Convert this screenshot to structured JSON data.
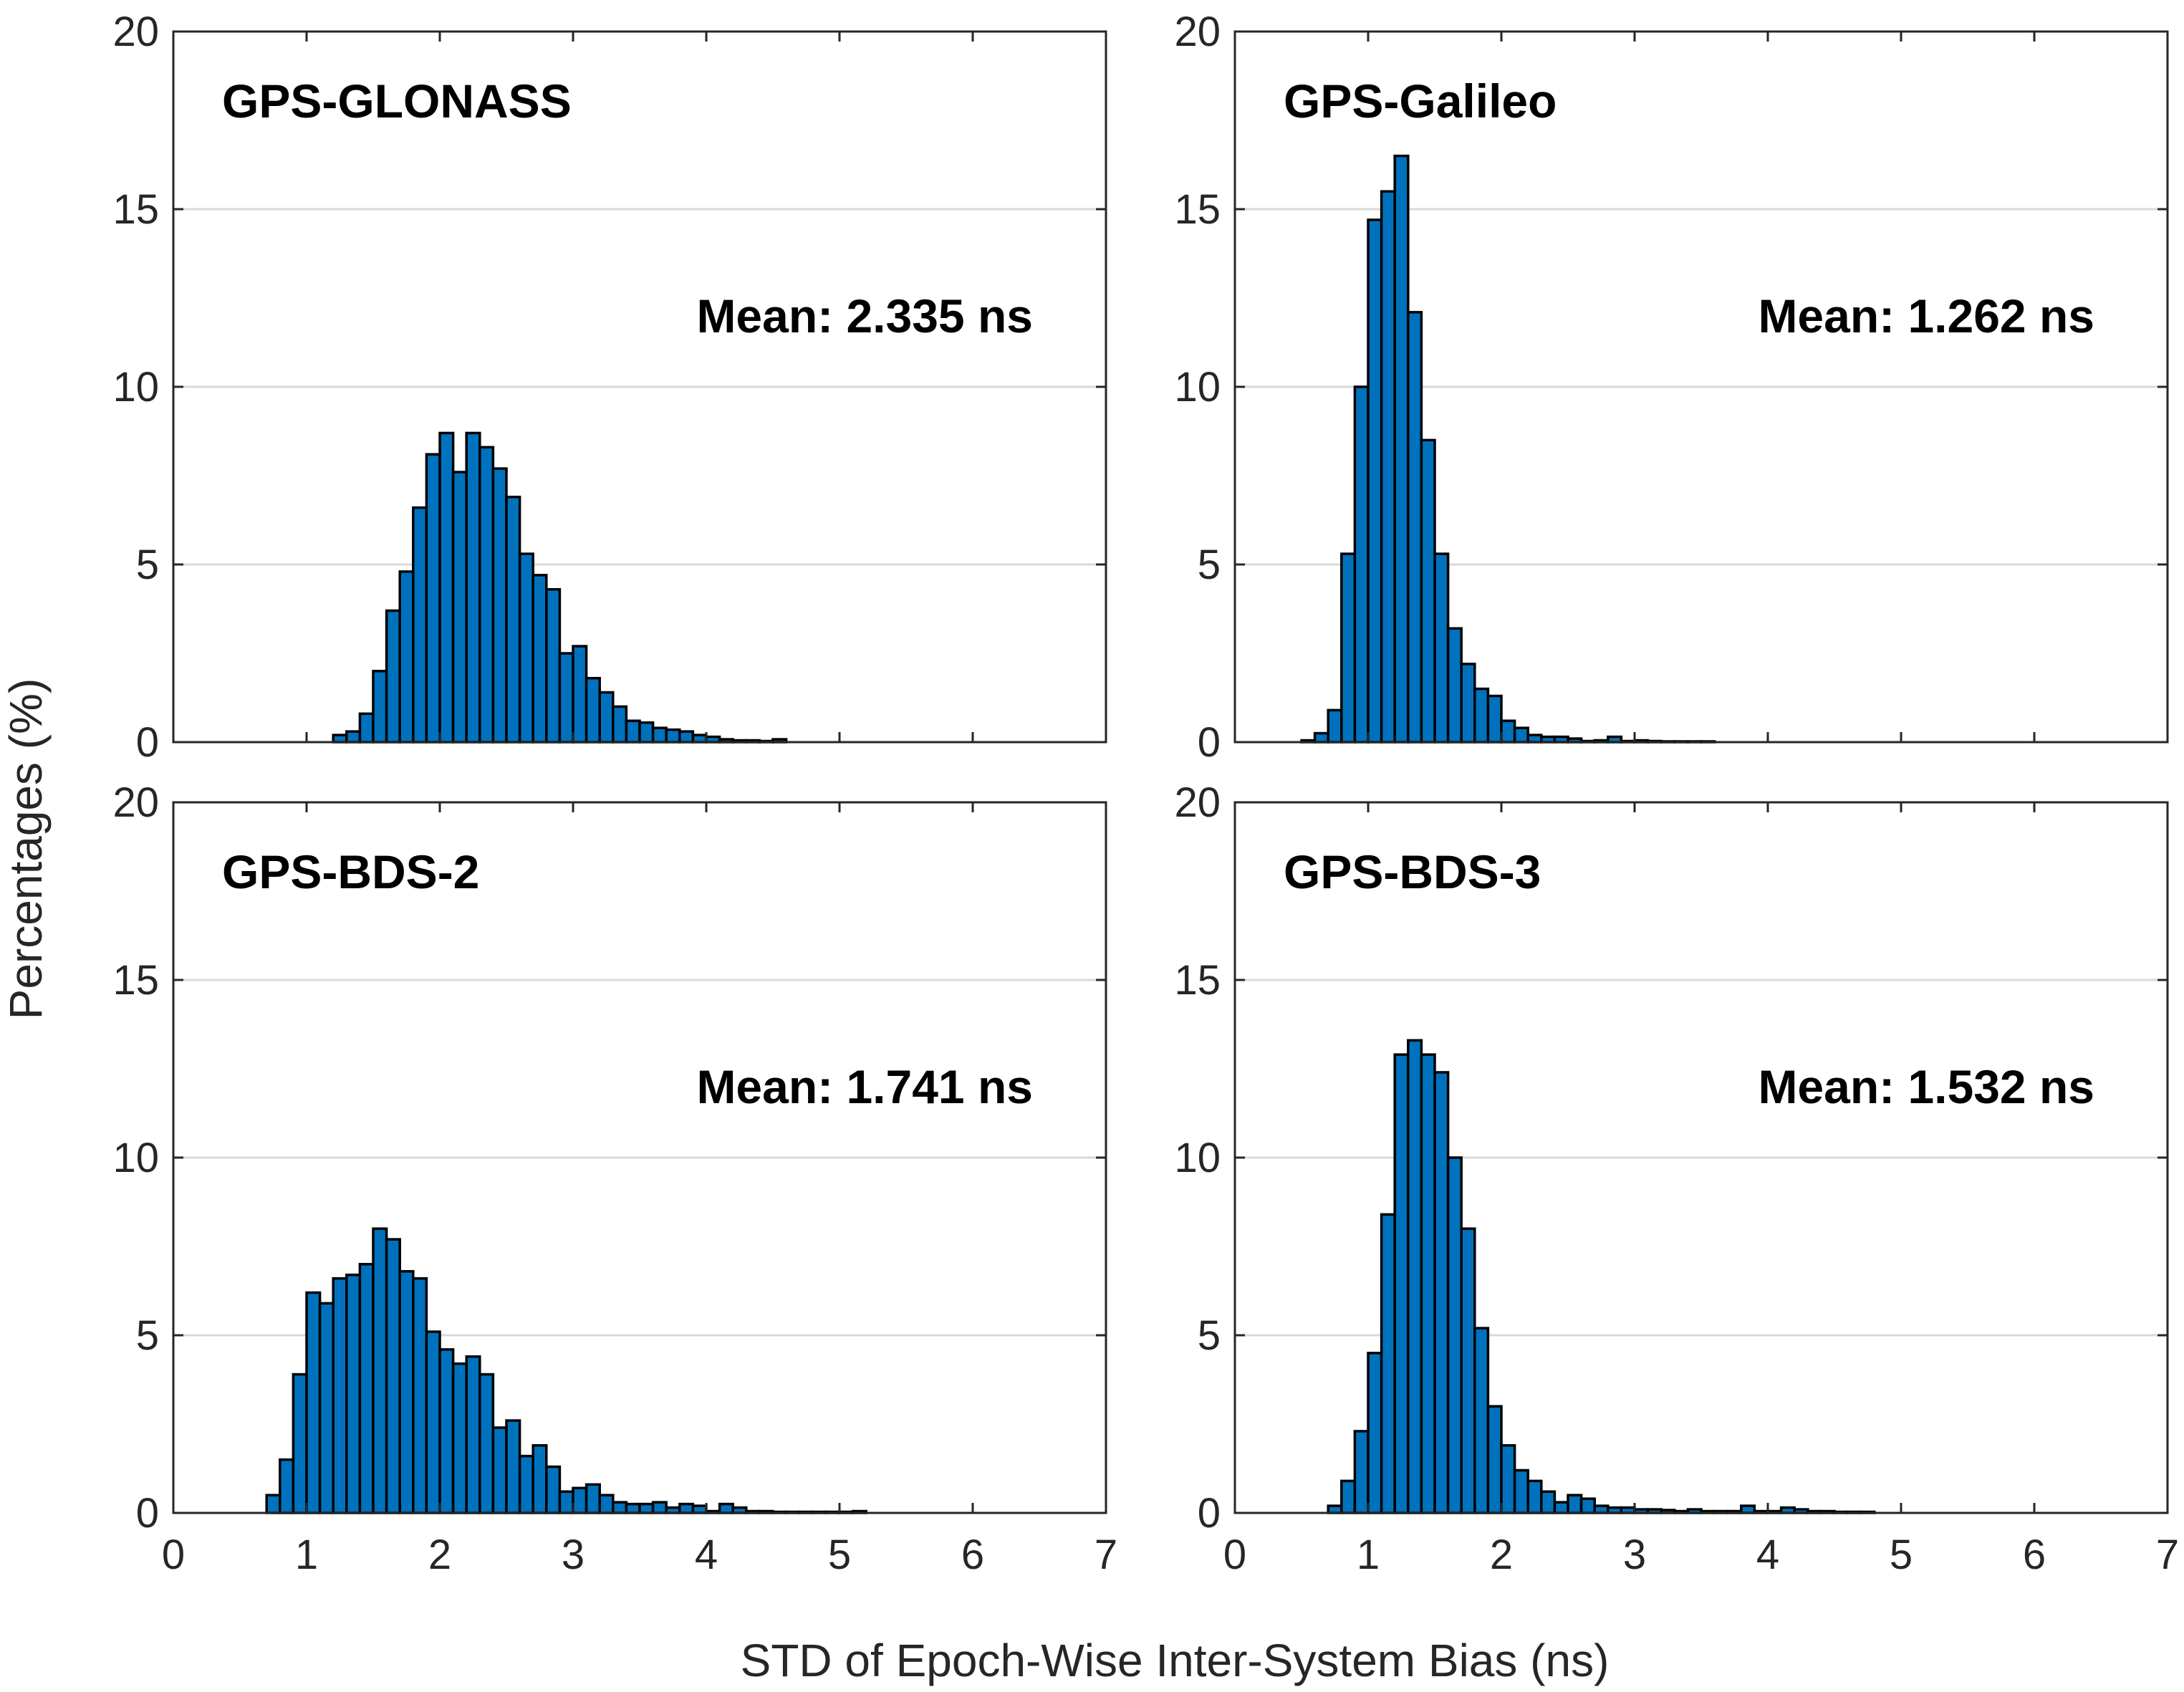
{
  "figure": {
    "xlabel": "STD of Epoch-Wise Inter-System Bias (ns)",
    "ylabel": "Percentages (%)"
  },
  "colors": {
    "bar_fill": "#0072BD",
    "bar_edge": "#000000",
    "grid": "#d9d9d9",
    "axis": "#262626"
  },
  "chart_data": [
    {
      "type": "bar",
      "title": "GPS-GLONASS",
      "annotation": "Mean: 2.335 ns",
      "xlim": [
        0,
        7
      ],
      "ylim": [
        0,
        20
      ],
      "xticks": [
        0,
        1,
        2,
        3,
        4,
        5,
        6,
        7
      ],
      "yticks": [
        0,
        5,
        10,
        15,
        20
      ],
      "bin_width": 0.1,
      "bin_centers": [
        1.25,
        1.35,
        1.45,
        1.55,
        1.65,
        1.75,
        1.85,
        1.95,
        2.05,
        2.15,
        2.25,
        2.35,
        2.45,
        2.55,
        2.65,
        2.75,
        2.85,
        2.95,
        3.05,
        3.15,
        3.25,
        3.35,
        3.45,
        3.55,
        3.65,
        3.75,
        3.85,
        3.95,
        4.05,
        4.15,
        4.25,
        4.35,
        4.45,
        4.55
      ],
      "values": [
        0.2,
        0.3,
        0.8,
        2.0,
        3.7,
        4.8,
        6.6,
        8.1,
        8.7,
        7.6,
        8.7,
        8.3,
        7.7,
        6.9,
        5.3,
        4.7,
        4.3,
        2.5,
        2.7,
        1.8,
        1.4,
        1.0,
        0.6,
        0.55,
        0.4,
        0.35,
        0.3,
        0.2,
        0.15,
        0.08,
        0.05,
        0.05,
        0.03,
        0.08
      ]
    },
    {
      "type": "bar",
      "title": "GPS-Galileo",
      "annotation": "Mean: 1.262 ns",
      "xlim": [
        0,
        7
      ],
      "ylim": [
        0,
        20
      ],
      "xticks": [
        0,
        1,
        2,
        3,
        4,
        5,
        6,
        7
      ],
      "yticks": [
        0,
        5,
        10,
        15,
        20
      ],
      "bin_width": 0.1,
      "bin_centers": [
        0.55,
        0.65,
        0.75,
        0.85,
        0.95,
        1.05,
        1.15,
        1.25,
        1.35,
        1.45,
        1.55,
        1.65,
        1.75,
        1.85,
        1.95,
        2.05,
        2.15,
        2.25,
        2.35,
        2.45,
        2.55,
        2.65,
        2.75,
        2.85,
        2.95,
        3.05,
        3.15,
        3.25,
        3.35,
        3.45,
        3.55
      ],
      "values": [
        0.05,
        0.25,
        0.9,
        5.3,
        10.0,
        14.7,
        15.5,
        16.5,
        12.1,
        8.5,
        5.3,
        3.2,
        2.2,
        1.5,
        1.3,
        0.6,
        0.4,
        0.2,
        0.15,
        0.15,
        0.1,
        0.03,
        0.05,
        0.15,
        0.03,
        0.05,
        0.03,
        0.02,
        0.02,
        0.02,
        0.02
      ]
    },
    {
      "type": "bar",
      "title": "GPS-BDS-2",
      "annotation": "Mean: 1.741 ns",
      "xlim": [
        0,
        7
      ],
      "ylim": [
        0,
        20
      ],
      "xticks": [
        0,
        1,
        2,
        3,
        4,
        5,
        6,
        7
      ],
      "yticks": [
        0,
        5,
        10,
        15,
        20
      ],
      "bin_width": 0.1,
      "bin_centers": [
        0.75,
        0.85,
        0.95,
        1.05,
        1.15,
        1.25,
        1.35,
        1.45,
        1.55,
        1.65,
        1.75,
        1.85,
        1.95,
        2.05,
        2.15,
        2.25,
        2.35,
        2.45,
        2.55,
        2.65,
        2.75,
        2.85,
        2.95,
        3.05,
        3.15,
        3.25,
        3.35,
        3.45,
        3.55,
        3.65,
        3.75,
        3.85,
        3.95,
        4.05,
        4.15,
        4.25,
        4.35,
        4.45,
        4.55,
        4.65,
        4.75,
        4.85,
        4.95,
        5.05,
        5.15
      ],
      "values": [
        0.5,
        1.5,
        3.9,
        6.2,
        5.9,
        6.6,
        6.7,
        7.0,
        8.0,
        7.7,
        6.8,
        6.6,
        5.1,
        4.6,
        4.2,
        4.4,
        3.9,
        2.4,
        2.6,
        1.6,
        1.9,
        1.3,
        0.6,
        0.7,
        0.8,
        0.5,
        0.3,
        0.25,
        0.25,
        0.3,
        0.15,
        0.25,
        0.2,
        0.05,
        0.25,
        0.15,
        0.05,
        0.05,
        0.03,
        0.03,
        0.03,
        0.03,
        0.03,
        0.03,
        0.05
      ]
    },
    {
      "type": "bar",
      "title": "GPS-BDS-3",
      "annotation": "Mean: 1.532 ns",
      "xlim": [
        0,
        7
      ],
      "ylim": [
        0,
        20
      ],
      "xticks": [
        0,
        1,
        2,
        3,
        4,
        5,
        6,
        7
      ],
      "yticks": [
        0,
        5,
        10,
        15,
        20
      ],
      "bin_width": 0.1,
      "bin_centers": [
        0.75,
        0.85,
        0.95,
        1.05,
        1.15,
        1.25,
        1.35,
        1.45,
        1.55,
        1.65,
        1.75,
        1.85,
        1.95,
        2.05,
        2.15,
        2.25,
        2.35,
        2.45,
        2.55,
        2.65,
        2.75,
        2.85,
        2.95,
        3.05,
        3.15,
        3.25,
        3.35,
        3.45,
        3.55,
        3.65,
        3.75,
        3.85,
        3.95,
        4.05,
        4.15,
        4.25,
        4.35,
        4.45,
        4.55,
        4.65,
        4.75
      ],
      "values": [
        0.2,
        0.9,
        2.3,
        4.5,
        8.4,
        12.9,
        13.3,
        12.9,
        12.4,
        10.0,
        8.0,
        5.2,
        3.0,
        1.9,
        1.2,
        0.9,
        0.6,
        0.3,
        0.5,
        0.4,
        0.2,
        0.15,
        0.15,
        0.1,
        0.1,
        0.08,
        0.05,
        0.1,
        0.05,
        0.05,
        0.05,
        0.2,
        0.05,
        0.05,
        0.15,
        0.1,
        0.05,
        0.05,
        0.03,
        0.03,
        0.03
      ]
    }
  ]
}
